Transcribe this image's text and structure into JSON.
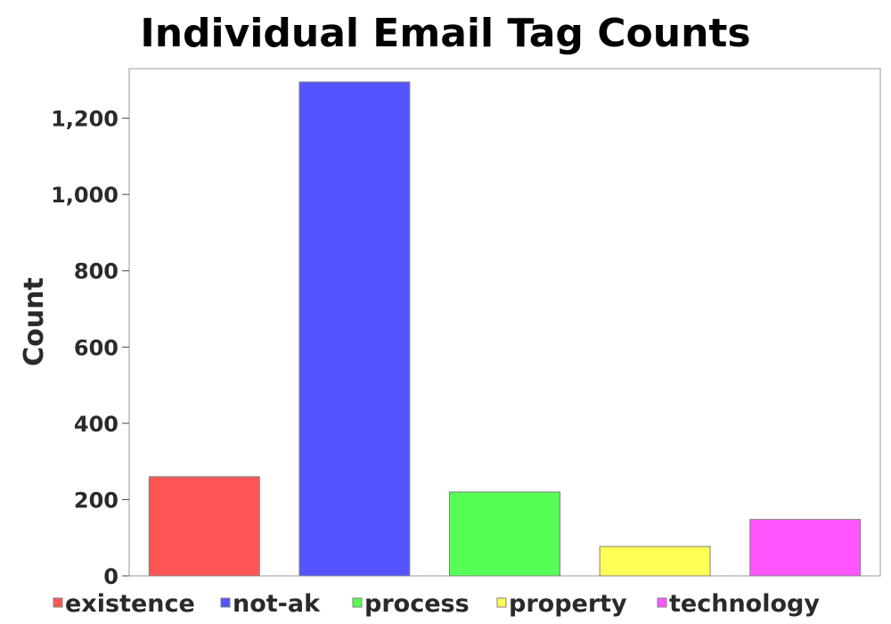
{
  "chart_data": {
    "type": "bar",
    "title": "Individual Email Tag Counts",
    "xlabel": "",
    "ylabel": "Count",
    "ylim": [
      0,
      1330
    ],
    "yticks": [
      0,
      200,
      400,
      600,
      800,
      1000,
      1200
    ],
    "ytick_labels": [
      "0",
      "200",
      "400",
      "600",
      "800",
      "1,000",
      "1,200"
    ],
    "categories": [
      "existence",
      "not-ak",
      "process",
      "property",
      "technology"
    ],
    "values": [
      260,
      1295,
      220,
      77,
      148
    ],
    "colors": [
      "#ff5555",
      "#5555ff",
      "#55ff55",
      "#ffff55",
      "#ff55ff"
    ],
    "bar_outline": "#808080",
    "grid": false,
    "legend": {
      "position": "bottom",
      "entries": [
        "existence",
        "not-ak",
        "process",
        "property",
        "technology"
      ]
    }
  }
}
